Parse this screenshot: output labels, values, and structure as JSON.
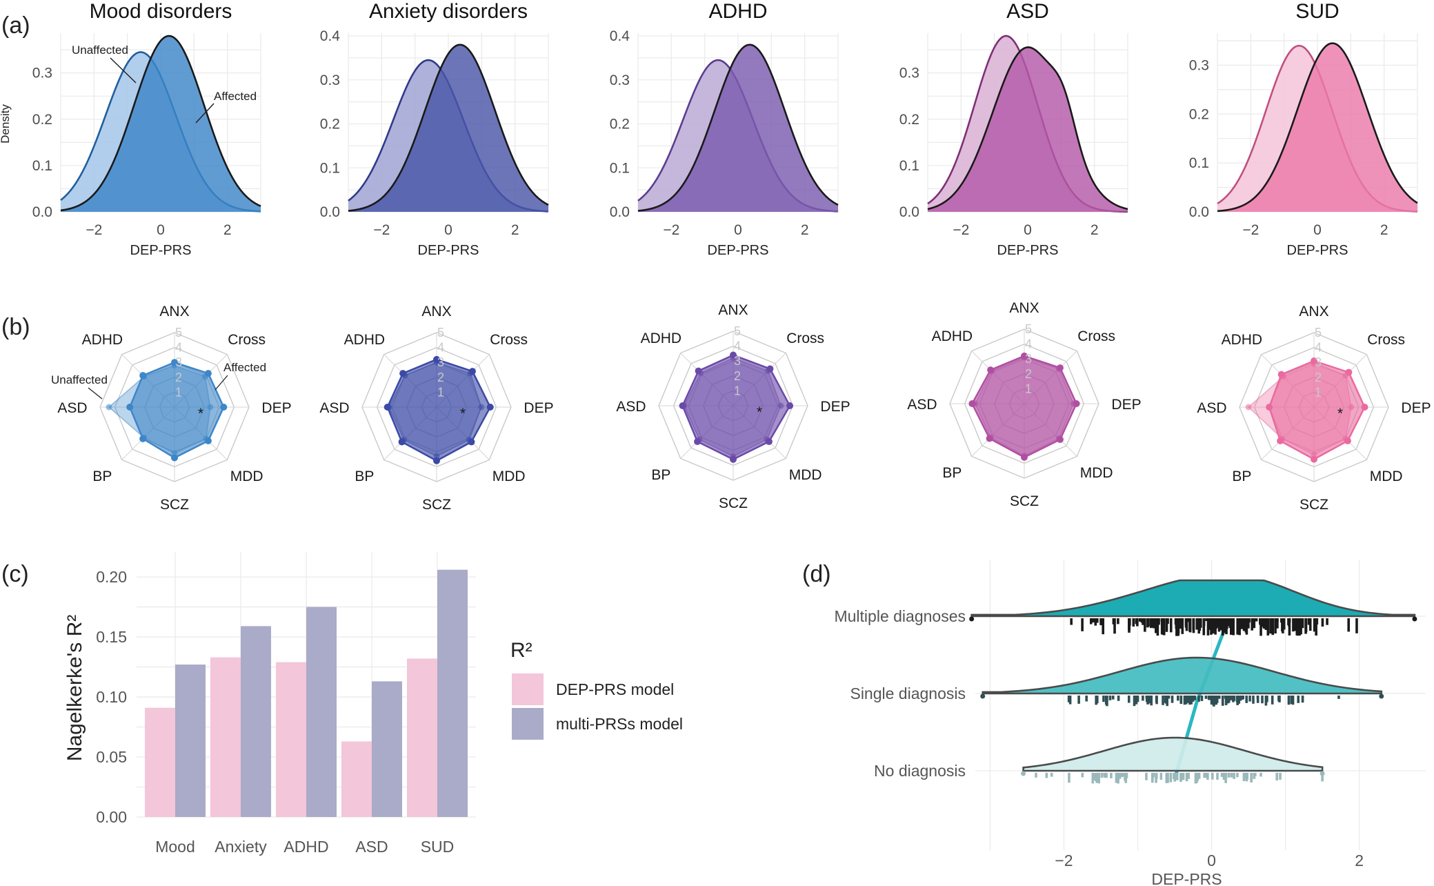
{
  "panel_labels": [
    "(a)",
    "(b)",
    "(c)",
    "(d)"
  ],
  "chart_data": [
    {
      "panel": "a",
      "type": "area",
      "xlabel": "DEP-PRS",
      "ylabel": "Density",
      "xlim": [
        -3,
        3
      ],
      "xticks": [
        -2,
        0,
        2
      ],
      "annotations": [
        "Unaffected",
        "Affected"
      ],
      "facets": [
        {
          "title": "Mood disorders",
          "ylim": [
            0,
            0.38
          ],
          "yticks": [
            0.0,
            0.1,
            0.2,
            0.3
          ],
          "colors": {
            "unaffected": "#a8c9ea",
            "affected": "#3d86c8",
            "line": "#1f5f9e"
          },
          "series": [
            {
              "name": "Unaffected",
              "mean": -0.6,
              "sd": 1.05,
              "peak": 0.345
            },
            {
              "name": "Affected",
              "mean": 0.25,
              "sd": 1.05,
              "peak": 0.38
            }
          ]
        },
        {
          "title": "Anxiety disorders",
          "ylim": [
            0,
            0.4
          ],
          "yticks": [
            0.0,
            0.1,
            0.2,
            0.3,
            0.4
          ],
          "colors": {
            "unaffected": "#a5a9d5",
            "affected": "#4a57a8",
            "line": "#2f3a8a"
          },
          "series": [
            {
              "name": "Unaffected",
              "mean": -0.6,
              "sd": 1.05,
              "peak": 0.345
            },
            {
              "name": "Affected",
              "mean": 0.35,
              "sd": 1.05,
              "peak": 0.38
            }
          ]
        },
        {
          "title": "ADHD",
          "ylim": [
            0,
            0.4
          ],
          "yticks": [
            0.0,
            0.1,
            0.2,
            0.3,
            0.4
          ],
          "colors": {
            "unaffected": "#bfaed8",
            "affected": "#7b5cae",
            "line": "#5a3d8e"
          },
          "series": [
            {
              "name": "Unaffected",
              "mean": -0.6,
              "sd": 1.05,
              "peak": 0.345
            },
            {
              "name": "Affected",
              "mean": 0.35,
              "sd": 1.05,
              "peak": 0.38
            }
          ]
        },
        {
          "title": "ASD",
          "ylim": [
            0,
            0.38
          ],
          "yticks": [
            0.0,
            0.1,
            0.2,
            0.3
          ],
          "colors": {
            "unaffected": "#dcb5d6",
            "affected": "#b45aa8",
            "line": "#7e2f76"
          },
          "series": [
            {
              "name": "Unaffected",
              "mean": -0.65,
              "sd": 0.95,
              "peak": 0.38
            },
            {
              "name": "Affected",
              "mean": 0.0,
              "sd": 1.05,
              "peak": 0.355
            }
          ]
        },
        {
          "title": "SUD",
          "ylim": [
            0,
            0.36
          ],
          "yticks": [
            0.0,
            0.1,
            0.2,
            0.3
          ],
          "colors": {
            "unaffected": "#f5c8da",
            "affected": "#ec7aa9",
            "line": "#c04f80"
          },
          "series": [
            {
              "name": "Unaffected",
              "mean": -0.55,
              "sd": 1.0,
              "peak": 0.34
            },
            {
              "name": "Affected",
              "mean": 0.45,
              "sd": 1.05,
              "peak": 0.345
            }
          ]
        }
      ]
    },
    {
      "panel": "b",
      "type": "radar",
      "axes": [
        "ANX",
        "Cross",
        "DEP",
        "MDD",
        "SCZ",
        "BP",
        "ASD",
        "ADHD"
      ],
      "ring_labels": [
        "1",
        "2",
        "3",
        "4",
        "5"
      ],
      "rmax": 5,
      "annotations": [
        "Unaffected",
        "Affected"
      ],
      "significance_marker": "*",
      "facets": [
        {
          "color": "#3d86c8",
          "star": true,
          "affected": [
            3.0,
            3.2,
            3.3,
            3.2,
            3.4,
            3.0,
            3.0,
            3.0
          ],
          "unaffected": [
            2.8,
            2.9,
            2.4,
            3.0,
            3.1,
            2.9,
            4.4,
            2.9
          ]
        },
        {
          "color": "#3b4aa5",
          "star": true,
          "affected": [
            3.2,
            3.4,
            3.6,
            3.3,
            3.6,
            3.3,
            3.3,
            3.2
          ],
          "unaffected": [
            3.0,
            3.2,
            3.0,
            3.1,
            3.3,
            3.1,
            3.2,
            3.0
          ]
        },
        {
          "color": "#6a4aa8",
          "star": true,
          "affected": [
            3.4,
            3.5,
            3.8,
            3.4,
            3.6,
            3.4,
            3.4,
            3.3
          ],
          "unaffected": [
            3.2,
            3.3,
            3.2,
            3.2,
            3.4,
            3.2,
            3.3,
            3.1
          ]
        },
        {
          "color": "#b04fa2",
          "star": false,
          "affected": [
            3.2,
            3.4,
            3.5,
            3.4,
            3.6,
            3.3,
            3.5,
            3.2
          ],
          "unaffected": [
            3.1,
            3.3,
            3.3,
            3.3,
            3.5,
            3.2,
            3.3,
            3.1
          ]
        },
        {
          "color": "#ea6a9f",
          "star": true,
          "affected": [
            3.1,
            3.3,
            3.4,
            3.2,
            3.5,
            3.2,
            3.0,
            3.1
          ],
          "unaffected": [
            2.9,
            3.0,
            2.5,
            3.0,
            3.2,
            3.0,
            4.4,
            2.9
          ]
        }
      ]
    },
    {
      "panel": "c",
      "type": "bar",
      "categories": [
        "Mood",
        "Anxiety",
        "ADHD",
        "ASD",
        "SUD"
      ],
      "ylabel": "Nagelkerke's R²",
      "ylim": [
        0,
        0.215
      ],
      "yticks": [
        "0.00",
        "0.05",
        "0.10",
        "0.15",
        "0.20"
      ],
      "legend_title": "R²",
      "legend_position": "right",
      "series": [
        {
          "name": "DEP-PRS model",
          "color": "#f3c6d9",
          "values": [
            0.091,
            0.133,
            0.129,
            0.063,
            0.132
          ]
        },
        {
          "name": "multi-PRSs model",
          "color": "#aaaac9",
          "values": [
            0.127,
            0.159,
            0.175,
            0.113,
            0.206
          ]
        }
      ]
    },
    {
      "panel": "d",
      "type": "area",
      "xlabel": "DEP-PRS",
      "xlim": [
        -3.2,
        2.9
      ],
      "xticks": [
        -2,
        0,
        2
      ],
      "categories": [
        "Multiple diagnoses",
        "Single diagnosis",
        "No diagnosis"
      ],
      "colors": [
        "#0aa5ad",
        "#42bcc0",
        "#cfeaea"
      ],
      "trend_line_color": "#2ab8c2",
      "series": [
        {
          "name": "Multiple diagnoses",
          "mean": 0.2,
          "range": [
            -3.25,
            2.75
          ]
        },
        {
          "name": "Single diagnosis",
          "mean": -0.2,
          "range": [
            -3.1,
            2.3
          ]
        },
        {
          "name": "No diagnosis",
          "mean": -0.5,
          "range": [
            -2.55,
            1.5
          ]
        }
      ]
    }
  ]
}
